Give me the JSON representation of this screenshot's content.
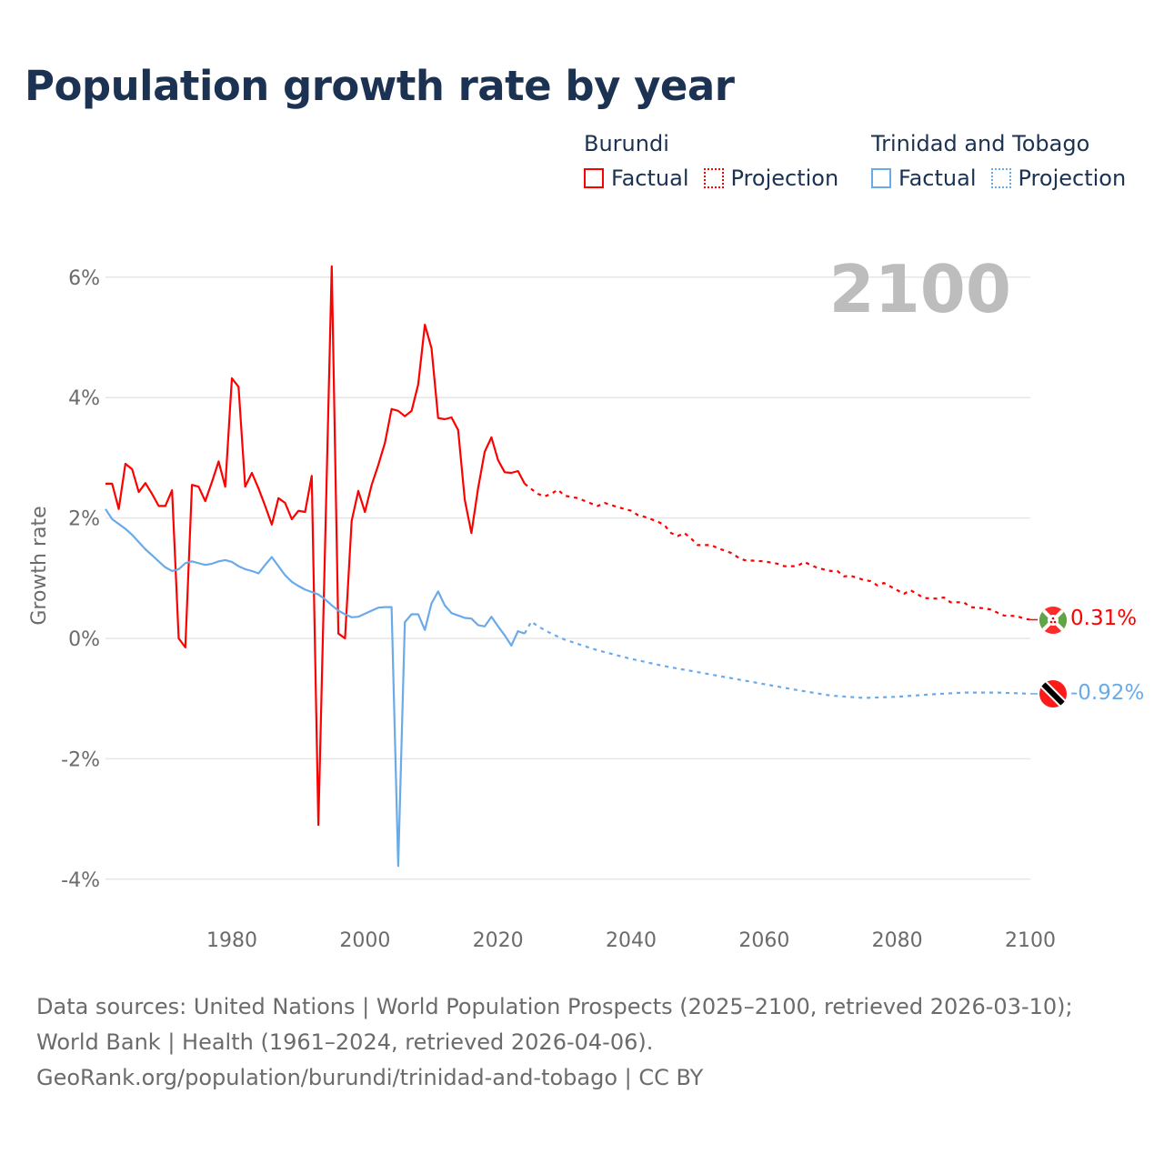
{
  "title": "Population growth rate by year",
  "legend": {
    "groups": [
      {
        "name": "Burundi",
        "factual": "Factual",
        "projection": "Projection",
        "color": "#ff0000"
      },
      {
        "name": "Trinidad and Tobago",
        "factual": "Factual",
        "projection": "Projection",
        "color": "#6aaae8"
      }
    ]
  },
  "year_label": "2100",
  "footer": {
    "sources": "Data sources: United Nations | World Population Prospects (2025–2100, retrieved 2026-03-10); World Bank | Health (1961–2024, retrieved 2026-04-06).",
    "credit": "GeoRank.org/population/burundi/trinidad-and-tobago | CC BY"
  },
  "chart_data": {
    "type": "line",
    "title": "Population growth rate by year",
    "xlabel": "",
    "ylabel": "Growth rate",
    "xlim": [
      1961,
      2100
    ],
    "ylim": [
      -4.5,
      6.3
    ],
    "x_ticks": [
      1980,
      2000,
      2020,
      2040,
      2060,
      2080,
      2100
    ],
    "y_ticks": [
      {
        "v": 6,
        "label": "6%"
      },
      {
        "v": 4,
        "label": "4%"
      },
      {
        "v": 2,
        "label": "2%"
      },
      {
        "v": 0,
        "label": "0%"
      },
      {
        "v": -2,
        "label": "-2%"
      },
      {
        "v": -4,
        "label": "-4%"
      }
    ],
    "grid": true,
    "series": [
      {
        "name": "Burundi",
        "color": "#ff0000",
        "end_label": "0.31%",
        "factual_start_year": 1961,
        "factual": [
          2.57,
          2.57,
          2.15,
          2.9,
          2.81,
          2.43,
          2.58,
          2.4,
          2.2,
          2.2,
          2.46,
          0.0,
          -0.15,
          2.55,
          2.52,
          2.28,
          2.6,
          2.94,
          2.52,
          4.32,
          4.18,
          2.52,
          2.75,
          2.49,
          2.2,
          1.89,
          2.33,
          2.25,
          1.98,
          2.12,
          2.1,
          2.7,
          -3.1,
          1.5,
          6.18,
          0.08,
          0.0,
          1.95,
          2.45,
          2.1,
          2.55,
          2.88,
          3.25,
          3.81,
          3.78,
          3.69,
          3.78,
          4.22,
          5.21,
          4.82,
          3.66,
          3.64,
          3.67,
          3.46,
          2.3,
          1.75,
          2.49,
          3.1,
          3.34,
          2.96,
          2.76,
          2.75,
          2.78,
          2.57
        ],
        "projection": [
          [
            2024,
            2.57
          ],
          [
            2025,
            2.48
          ],
          [
            2026,
            2.4
          ],
          [
            2027,
            2.36
          ],
          [
            2028,
            2.4
          ],
          [
            2029,
            2.47
          ],
          [
            2030,
            2.37
          ],
          [
            2032,
            2.33
          ],
          [
            2034,
            2.24
          ],
          [
            2035,
            2.2
          ],
          [
            2036,
            2.25
          ],
          [
            2038,
            2.18
          ],
          [
            2040,
            2.12
          ],
          [
            2041,
            2.05
          ],
          [
            2042,
            2.02
          ],
          [
            2043,
            1.98
          ],
          [
            2044,
            1.94
          ],
          [
            2045,
            1.88
          ],
          [
            2046,
            1.75
          ],
          [
            2047,
            1.7
          ],
          [
            2048,
            1.75
          ],
          [
            2049,
            1.66
          ],
          [
            2050,
            1.55
          ],
          [
            2052,
            1.55
          ],
          [
            2053,
            1.5
          ],
          [
            2055,
            1.42
          ],
          [
            2056,
            1.35
          ],
          [
            2057,
            1.3
          ],
          [
            2060,
            1.28
          ],
          [
            2062,
            1.24
          ],
          [
            2063,
            1.2
          ],
          [
            2065,
            1.2
          ],
          [
            2066,
            1.27
          ],
          [
            2068,
            1.17
          ],
          [
            2070,
            1.12
          ],
          [
            2071,
            1.12
          ],
          [
            2072,
            1.03
          ],
          [
            2073,
            1.04
          ],
          [
            2075,
            0.97
          ],
          [
            2076,
            0.95
          ],
          [
            2077,
            0.88
          ],
          [
            2078,
            0.92
          ],
          [
            2080,
            0.8
          ],
          [
            2081,
            0.74
          ],
          [
            2082,
            0.8
          ],
          [
            2084,
            0.67
          ],
          [
            2086,
            0.66
          ],
          [
            2087,
            0.68
          ],
          [
            2088,
            0.6
          ],
          [
            2090,
            0.6
          ],
          [
            2091,
            0.52
          ],
          [
            2093,
            0.5
          ],
          [
            2094,
            0.48
          ],
          [
            2096,
            0.38
          ],
          [
            2098,
            0.37
          ],
          [
            2099,
            0.33
          ],
          [
            2100,
            0.31
          ]
        ]
      },
      {
        "name": "Trinidad and Tobago",
        "color": "#6aaae8",
        "end_label": "-0.92%",
        "factual_start_year": 1961,
        "factual": [
          2.15,
          1.98,
          1.9,
          1.82,
          1.72,
          1.6,
          1.48,
          1.38,
          1.28,
          1.18,
          1.12,
          1.15,
          1.25,
          1.28,
          1.25,
          1.22,
          1.24,
          1.28,
          1.3,
          1.27,
          1.2,
          1.15,
          1.12,
          1.08,
          1.22,
          1.35,
          1.2,
          1.05,
          0.94,
          0.87,
          0.81,
          0.77,
          0.73,
          0.65,
          0.55,
          0.46,
          0.4,
          0.35,
          0.36,
          0.41,
          0.46,
          0.51,
          0.52,
          0.52,
          -3.78,
          0.27,
          0.4,
          0.4,
          0.14,
          0.58,
          0.78,
          0.55,
          0.42,
          0.38,
          0.34,
          0.33,
          0.22,
          0.2,
          0.36,
          0.2,
          0.05,
          -0.12,
          0.12,
          0.08
        ],
        "projection": [
          [
            2024,
            0.08
          ],
          [
            2025,
            0.28
          ],
          [
            2026,
            0.2
          ],
          [
            2028,
            0.08
          ],
          [
            2030,
            -0.02
          ],
          [
            2035,
            -0.2
          ],
          [
            2040,
            -0.34
          ],
          [
            2045,
            -0.46
          ],
          [
            2050,
            -0.56
          ],
          [
            2055,
            -0.66
          ],
          [
            2060,
            -0.76
          ],
          [
            2065,
            -0.86
          ],
          [
            2070,
            -0.95
          ],
          [
            2075,
            -0.99
          ],
          [
            2080,
            -0.97
          ],
          [
            2085,
            -0.93
          ],
          [
            2090,
            -0.9
          ],
          [
            2095,
            -0.9
          ],
          [
            2100,
            -0.92
          ]
        ]
      }
    ]
  }
}
